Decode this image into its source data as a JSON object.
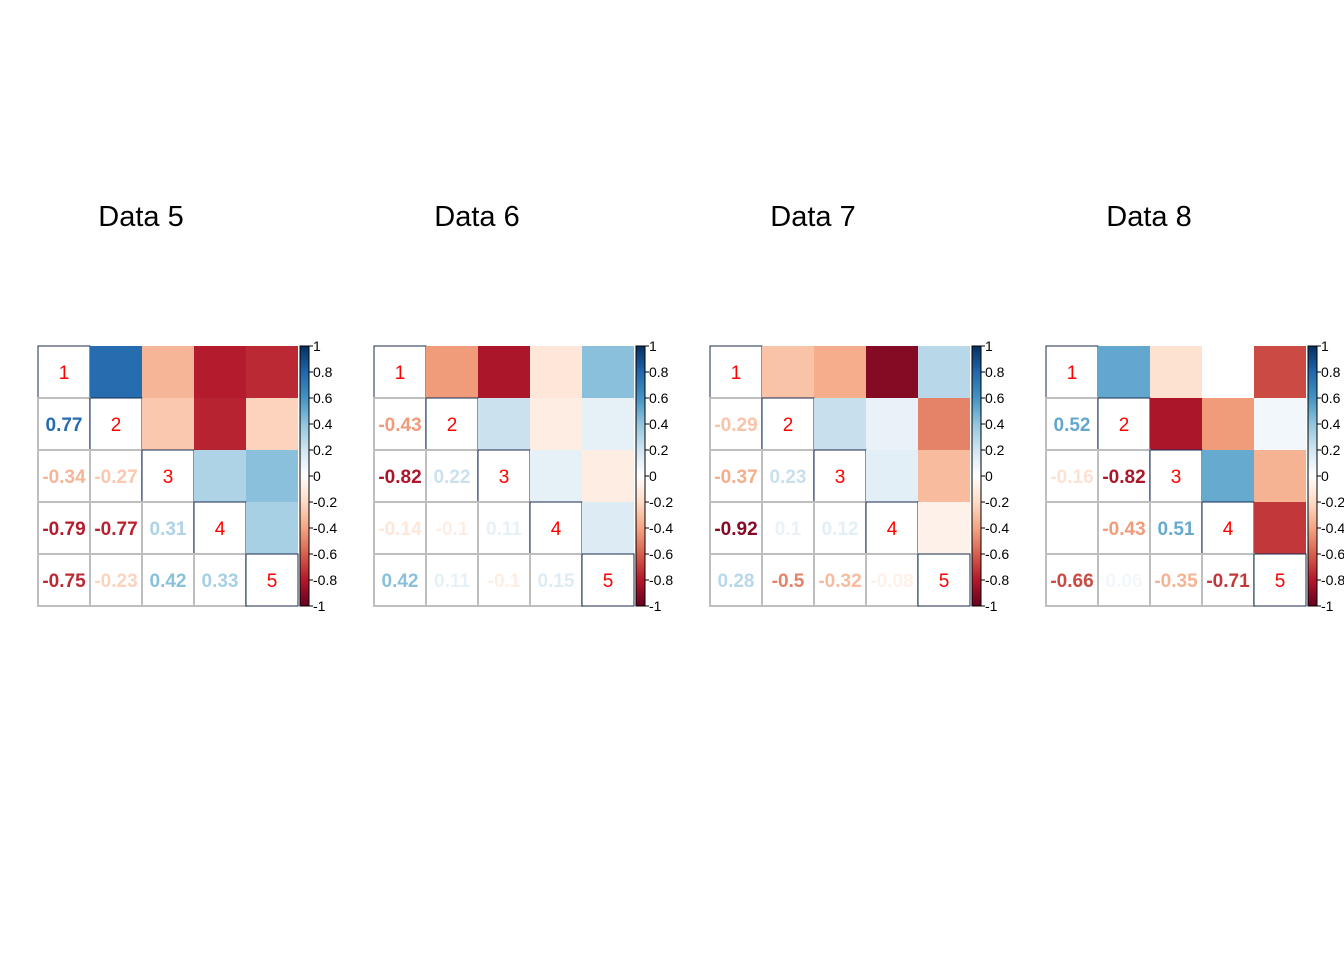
{
  "chart_data": [
    {
      "type": "heatmap",
      "title": "Data 5",
      "labels": [
        "1",
        "2",
        "3",
        "4",
        "5"
      ],
      "matrix": [
        [
          1,
          0.77,
          -0.34,
          -0.79,
          -0.75
        ],
        [
          0.77,
          1,
          -0.27,
          -0.77,
          -0.23
        ],
        [
          -0.34,
          -0.27,
          1,
          0.31,
          0.42
        ],
        [
          -0.79,
          -0.77,
          0.31,
          1,
          0.33
        ],
        [
          -0.75,
          -0.23,
          0.42,
          0.33,
          1
        ]
      ]
    },
    {
      "type": "heatmap",
      "title": "Data 6",
      "labels": [
        "1",
        "2",
        "3",
        "4",
        "5"
      ],
      "matrix": [
        [
          1,
          -0.43,
          -0.82,
          -0.14,
          0.42
        ],
        [
          -0.43,
          1,
          0.22,
          -0.1,
          0.11
        ],
        [
          -0.82,
          0.22,
          1,
          0.11,
          -0.1
        ],
        [
          -0.14,
          -0.1,
          0.11,
          1,
          0.15
        ],
        [
          0.42,
          0.11,
          -0.1,
          0.15,
          1
        ]
      ]
    },
    {
      "type": "heatmap",
      "title": "Data 7",
      "labels": [
        "1",
        "2",
        "3",
        "4",
        "5"
      ],
      "matrix": [
        [
          1,
          -0.29,
          -0.37,
          -0.92,
          0.28
        ],
        [
          -0.29,
          1,
          0.23,
          0.1,
          -0.5
        ],
        [
          -0.37,
          0.23,
          1,
          0.12,
          -0.32
        ],
        [
          -0.92,
          0.1,
          0.12,
          1,
          -0.08
        ],
        [
          0.28,
          -0.5,
          -0.32,
          -0.08,
          1
        ]
      ]
    },
    {
      "type": "heatmap",
      "title": "Data 8",
      "labels": [
        "1",
        "2",
        "3",
        "4",
        "5"
      ],
      "matrix": [
        [
          1,
          0.52,
          -0.16,
          0,
          -0.66
        ],
        [
          0.52,
          1,
          -0.82,
          -0.43,
          0.06
        ],
        [
          -0.16,
          -0.82,
          1,
          0.51,
          -0.35
        ],
        [
          0,
          -0.43,
          0.51,
          1,
          -0.71
        ],
        [
          -0.66,
          0.06,
          -0.35,
          -0.71,
          1
        ]
      ]
    }
  ],
  "colorbar": {
    "range": [
      -1,
      1
    ],
    "ticks": [
      "1",
      "0.8",
      "0.6",
      "0.4",
      "0.2",
      "0",
      "-0.2",
      "-0.4",
      "-0.6",
      "-0.8",
      "-1"
    ]
  },
  "colors": {
    "palette": [
      "#67001F",
      "#B2182B",
      "#D6604D",
      "#F4A582",
      "#FDDBC7",
      "#FFFFFF",
      "#D1E5F0",
      "#92C5DE",
      "#4393C3",
      "#2166AC",
      "#053061"
    ],
    "diag_label": "#FF0000",
    "grid": "#BEBEBE"
  }
}
